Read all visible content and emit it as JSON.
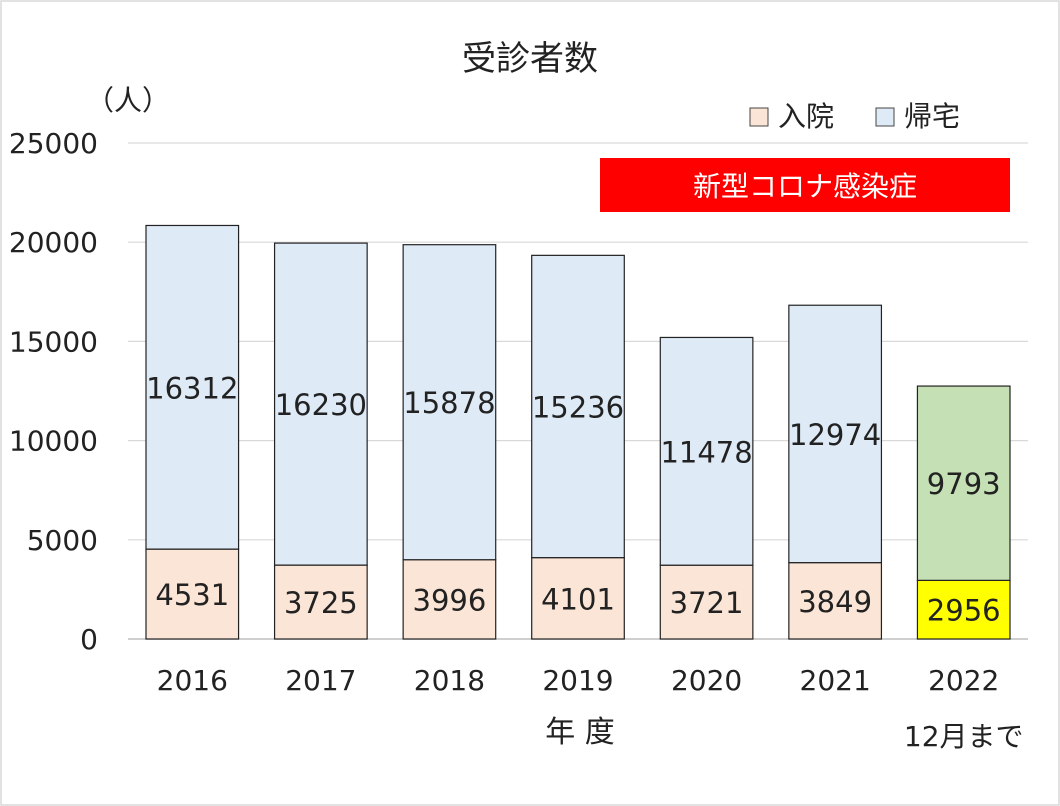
{
  "chart_data": {
    "type": "bar",
    "stacked": true,
    "title": "受診者数",
    "ylabel": "（人）",
    "xlabel": "年 度",
    "ylim": [
      0,
      25000
    ],
    "yticks": [
      0,
      5000,
      10000,
      15000,
      20000,
      25000
    ],
    "grid": true,
    "legend_position": "top-right",
    "categories": [
      {
        "label": "2016",
        "sublabel": ""
      },
      {
        "label": "2017",
        "sublabel": ""
      },
      {
        "label": "2018",
        "sublabel": ""
      },
      {
        "label": "2019",
        "sublabel": ""
      },
      {
        "label": "2020",
        "sublabel": ""
      },
      {
        "label": "2021",
        "sublabel": ""
      },
      {
        "label": "2022",
        "sublabel": "12月まで"
      }
    ],
    "series": [
      {
        "name": "入院",
        "values": [
          4531,
          3725,
          3996,
          4101,
          3721,
          3849,
          2956
        ],
        "color": "#FBE5D6",
        "last_color": "#FFFF00"
      },
      {
        "name": "帰宅",
        "values": [
          16312,
          16230,
          15878,
          15236,
          11478,
          12974,
          9793
        ],
        "color": "#DEEBF7",
        "last_color": "#C5E0B4"
      }
    ],
    "annotation": {
      "text": "新型コロナ感染症",
      "color": "#FF0000"
    }
  }
}
